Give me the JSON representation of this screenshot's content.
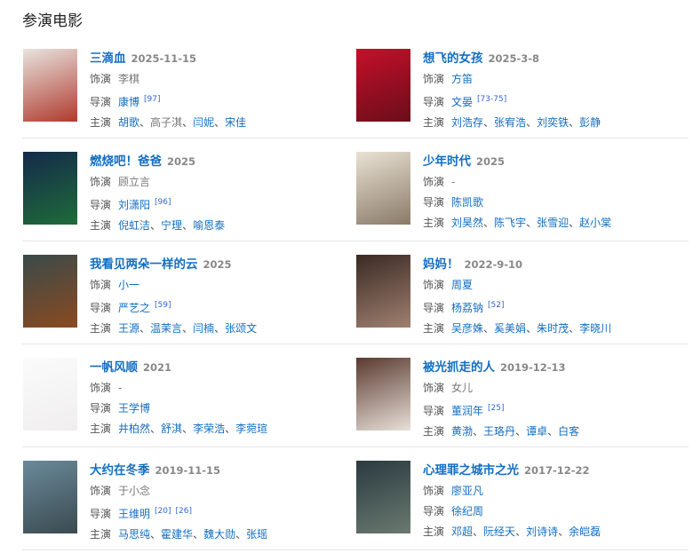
{
  "heading": "参演电影",
  "labels": {
    "role": "饰演",
    "director": "导演",
    "cast": "主演"
  },
  "movies": [
    {
      "title": "三滴血",
      "date": "2025-11-15",
      "role": "李棋",
      "role_link": false,
      "director": "康博",
      "refs": [
        "[97]"
      ],
      "cast": [
        {
          "n": "胡歌",
          "l": true
        },
        {
          "n": "高子淇",
          "l": false
        },
        {
          "n": "闫妮",
          "l": true
        },
        {
          "n": "宋佳",
          "l": true
        }
      ],
      "poster": [
        "#e8e4df",
        "#b03a2e"
      ]
    },
    {
      "title": "想飞的女孩",
      "date": "2025-3-8",
      "role": "方笛",
      "role_link": true,
      "director": "文晏",
      "refs": [
        "[73-75]"
      ],
      "cast": [
        {
          "n": "刘浩存",
          "l": true
        },
        {
          "n": "张宥浩",
          "l": true
        },
        {
          "n": "刘奕铁",
          "l": true
        },
        {
          "n": "彭静",
          "l": true
        }
      ],
      "poster": [
        "#c4102a",
        "#6a0d1a"
      ]
    },
    {
      "title": "燃烧吧！爸爸",
      "date": "2025",
      "role": "顾立言",
      "role_link": false,
      "director": "刘潇阳",
      "refs": [
        "[96]"
      ],
      "cast": [
        {
          "n": "倪虹洁",
          "l": true
        },
        {
          "n": "宁理",
          "l": true
        },
        {
          "n": "喻恩泰",
          "l": true
        }
      ],
      "poster": [
        "#142a4a",
        "#1f6b3a"
      ]
    },
    {
      "title": "少年时代",
      "date": "2025",
      "role": "-",
      "role_link": false,
      "director": "陈凯歌",
      "refs": [],
      "cast": [
        {
          "n": "刘昊然",
          "l": true
        },
        {
          "n": "陈飞宇",
          "l": true
        },
        {
          "n": "张雪迎",
          "l": true
        },
        {
          "n": "赵小棠",
          "l": true
        }
      ],
      "poster": [
        "#e9e2d4",
        "#8a7a68"
      ]
    },
    {
      "title": "我看见两朵一样的云",
      "date": "2025",
      "role": "小一",
      "role_link": true,
      "director": "严艺之",
      "refs": [
        "[59]"
      ],
      "cast": [
        {
          "n": "王源",
          "l": true
        },
        {
          "n": "温茉言",
          "l": true
        },
        {
          "n": "闫楠",
          "l": true
        },
        {
          "n": "张颂文",
          "l": true
        }
      ],
      "poster": [
        "#3a4a4a",
        "#8a4a20"
      ]
    },
    {
      "title": "妈妈！",
      "date": "2022-9-10",
      "role": "周夏",
      "role_link": true,
      "director": "杨荔钠",
      "refs": [
        "[52]"
      ],
      "cast": [
        {
          "n": "吴彦姝",
          "l": true
        },
        {
          "n": "奚美娟",
          "l": true
        },
        {
          "n": "朱时茂",
          "l": true
        },
        {
          "n": "李晓川",
          "l": true
        }
      ],
      "poster": [
        "#3a2a24",
        "#a08070"
      ]
    },
    {
      "title": "一帆风顺",
      "date": "2021",
      "role": "-",
      "role_link": false,
      "director": "王学博",
      "refs": [],
      "cast": [
        {
          "n": "井柏然",
          "l": true
        },
        {
          "n": "舒淇",
          "l": true
        },
        {
          "n": "李荣浩",
          "l": true
        },
        {
          "n": "李菀瑄",
          "l": true
        }
      ],
      "poster": [
        "#fbfbfb",
        "#f0eeee"
      ]
    },
    {
      "title": "被光抓走的人",
      "date": "2019-12-13",
      "role": "女儿",
      "role_link": false,
      "director": "董润年",
      "refs": [
        "[25]"
      ],
      "cast": [
        {
          "n": "黄渤",
          "l": true
        },
        {
          "n": "王珞丹",
          "l": true
        },
        {
          "n": "谭卓",
          "l": true
        },
        {
          "n": "白客",
          "l": true
        }
      ],
      "poster": [
        "#5a3a30",
        "#e8e0d8"
      ]
    },
    {
      "title": "大约在冬季",
      "date": "2019-11-15",
      "role": "于小念",
      "role_link": false,
      "director": "王维明",
      "refs": [
        "[20]",
        "[26]"
      ],
      "cast": [
        {
          "n": "马思纯",
          "l": true
        },
        {
          "n": "霍建华",
          "l": true
        },
        {
          "n": "魏大勋",
          "l": true
        },
        {
          "n": "张瑶",
          "l": true
        }
      ],
      "poster": [
        "#6a8a9a",
        "#3a4a50"
      ]
    },
    {
      "title": "心理罪之城市之光",
      "date": "2017-12-22",
      "role": "廖亚凡",
      "role_link": true,
      "director": "徐纪周",
      "refs": [],
      "cast": [
        {
          "n": "邓超",
          "l": true
        },
        {
          "n": "阮经天",
          "l": true
        },
        {
          "n": "刘诗诗",
          "l": true
        },
        {
          "n": "余皑磊",
          "l": true
        }
      ],
      "poster": [
        "#2a3a40",
        "#6a7a70"
      ]
    }
  ]
}
